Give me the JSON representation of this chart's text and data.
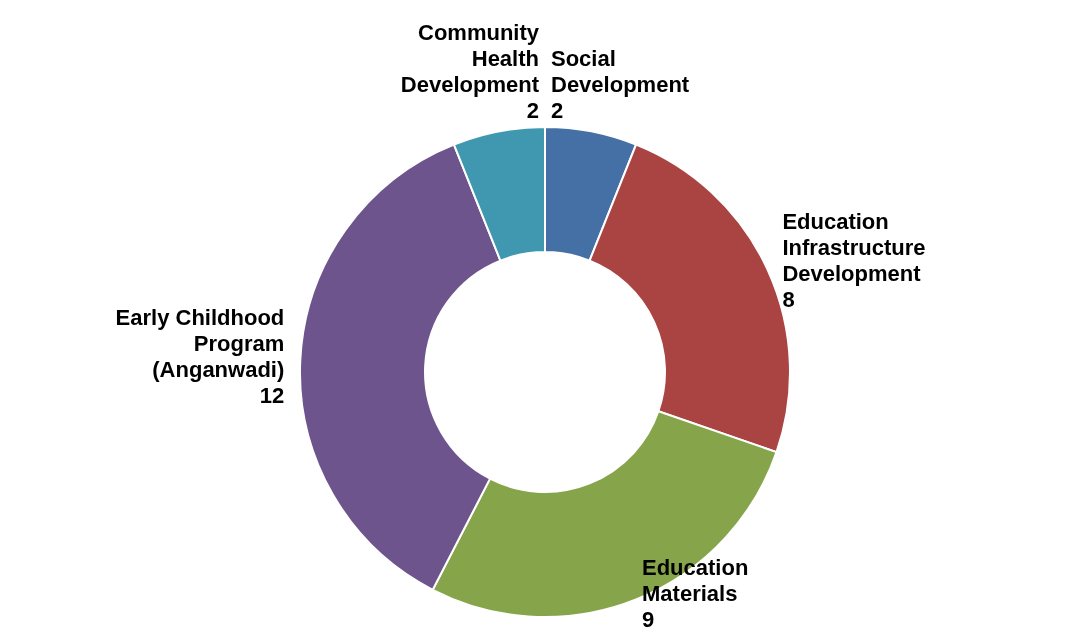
{
  "chart_data": {
    "type": "donut",
    "categories": [
      "Social Development",
      "Education Infrastructure Development",
      "Education Materials",
      "Early Childhood Program (Anganwadi)",
      "Community Health Development"
    ],
    "values": [
      2,
      8,
      9,
      12,
      2
    ],
    "colors": [
      "#4470a6",
      "#a94442",
      "#86a44a",
      "#6e548d",
      "#3f97b0"
    ],
    "data_labels": true
  }
}
